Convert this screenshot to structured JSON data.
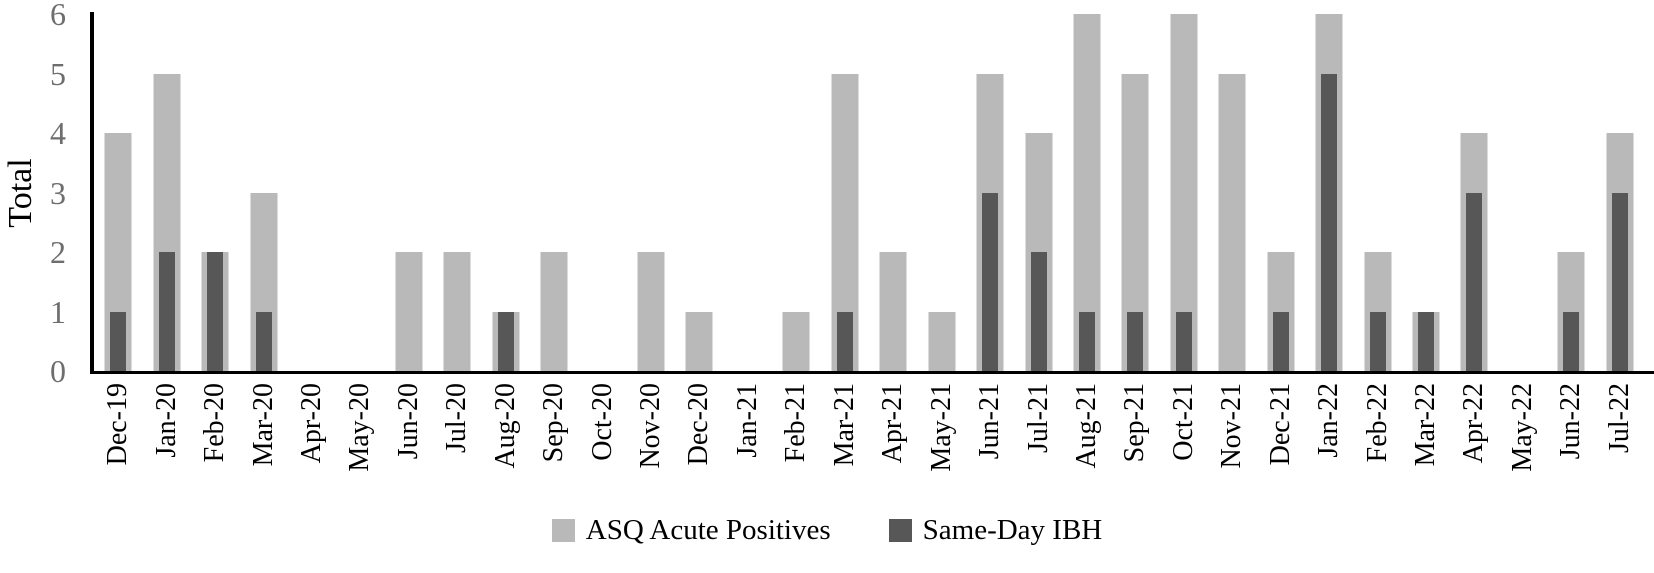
{
  "chart_data": {
    "type": "bar",
    "title": "",
    "xlabel": "",
    "ylabel": "Total",
    "ylim": [
      0,
      6
    ],
    "yticks": [
      0,
      1,
      2,
      3,
      4,
      5,
      6
    ],
    "grid": false,
    "legend_position": "bottom",
    "categories": [
      "Dec-19",
      "Jan-20",
      "Feb-20",
      "Mar-20",
      "Apr-20",
      "May-20",
      "Jun-20",
      "Jul-20",
      "Aug-20",
      "Sep-20",
      "Oct-20",
      "Nov-20",
      "Dec-20",
      "Jan-21",
      "Feb-21",
      "Mar-21",
      "Apr-21",
      "May-21",
      "Jun-21",
      "Jul-21",
      "Aug-21",
      "Sep-21",
      "Oct-21",
      "Nov-21",
      "Dec-21",
      "Jan-22",
      "Feb-22",
      "Mar-22",
      "Apr-22",
      "May-22",
      "Jun-22",
      "Jul-22"
    ],
    "series": [
      {
        "name": "ASQ Acute Positives",
        "color": "#b9b9b9",
        "values": [
          4,
          5,
          2,
          3,
          0,
          0,
          2,
          2,
          1,
          2,
          0,
          2,
          1,
          0,
          1,
          5,
          2,
          1,
          5,
          4,
          6,
          5,
          6,
          5,
          2,
          6,
          2,
          1,
          4,
          0,
          2,
          4
        ]
      },
      {
        "name": "Same-Day IBH",
        "color": "#575757",
        "values": [
          1,
          2,
          2,
          1,
          0,
          0,
          0,
          0,
          1,
          0,
          0,
          0,
          0,
          0,
          0,
          1,
          0,
          0,
          3,
          2,
          1,
          1,
          1,
          0,
          1,
          5,
          1,
          1,
          3,
          0,
          1,
          3
        ]
      }
    ]
  },
  "colors": {
    "axis": "#000000",
    "y_tick_text": "#6e6e6e",
    "text": "#000000",
    "background": "#ffffff"
  }
}
